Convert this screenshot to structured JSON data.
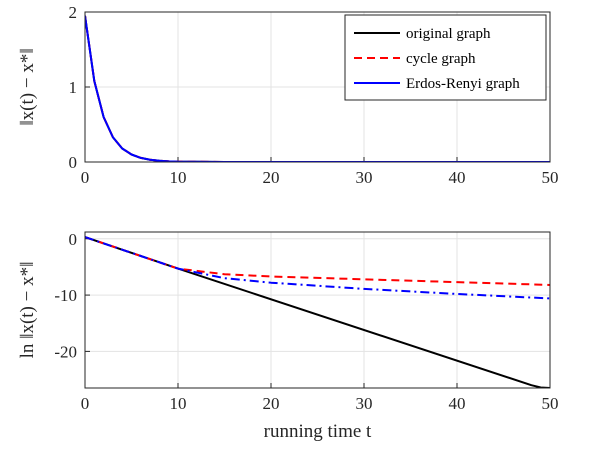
{
  "chart_data": [
    {
      "type": "line",
      "ylabel": "‖x(t) − x*‖",
      "xlim": [
        0,
        50
      ],
      "ylim": [
        0,
        2
      ],
      "x_ticks": [
        "0",
        "10",
        "20",
        "30",
        "40",
        "50"
      ],
      "y_ticks": [
        "0",
        "1",
        "2"
      ],
      "grid": true,
      "legend_position": "top-right",
      "x": [
        0,
        1,
        2,
        3,
        4,
        5,
        6,
        7,
        8,
        9,
        10,
        15,
        20,
        25,
        30,
        35,
        40,
        45,
        50
      ],
      "series": [
        {
          "name": "original graph",
          "color": "#000000",
          "dash": "solid",
          "values": [
            1.95,
            1.08,
            0.6,
            0.33,
            0.18,
            0.1,
            0.055,
            0.03,
            0.017,
            0.009,
            0.005,
            0.0,
            0.0,
            0.0,
            0.0,
            0.0,
            0.0,
            0.0,
            0.0
          ]
        },
        {
          "name": "cycle graph",
          "color": "#ff0000",
          "dash": "dashed",
          "values": [
            1.95,
            1.08,
            0.6,
            0.33,
            0.18,
            0.1,
            0.055,
            0.03,
            0.017,
            0.009,
            0.005,
            0.0,
            0.0,
            0.0,
            0.0,
            0.0,
            0.0,
            0.0,
            0.0
          ]
        },
        {
          "name": "Erdos-Renyi graph",
          "color": "#0000ff",
          "dash": "solid",
          "values": [
            1.95,
            1.08,
            0.6,
            0.33,
            0.18,
            0.1,
            0.055,
            0.03,
            0.017,
            0.009,
            0.005,
            0.0,
            0.0,
            0.0,
            0.0,
            0.0,
            0.0,
            0.0,
            0.0
          ]
        }
      ]
    },
    {
      "type": "line",
      "xlabel": "running time t",
      "ylabel": "ln ‖x(t) − x*‖",
      "xlim": [
        0,
        50
      ],
      "ylim": [
        -26.5,
        1.2
      ],
      "x_ticks": [
        "0",
        "10",
        "20",
        "30",
        "40",
        "50"
      ],
      "y_ticks": [
        "0",
        "-10",
        "-20"
      ],
      "grid": true,
      "series": [
        {
          "name": "original graph",
          "color": "#000000",
          "dash": "solid",
          "x": [
            0,
            10,
            48,
            49,
            50
          ],
          "values": [
            0.3,
            -5.3,
            -26.0,
            -26.4,
            -26.5
          ]
        },
        {
          "name": "cycle graph",
          "color": "#ff0000",
          "dash": "dashed",
          "x": [
            0,
            10,
            15,
            20,
            30,
            40,
            50
          ],
          "values": [
            0.3,
            -5.3,
            -6.3,
            -6.7,
            -7.2,
            -7.7,
            -8.2
          ]
        },
        {
          "name": "Erdos-Renyi graph",
          "color": "#0000ff",
          "dash": "dashdot",
          "x": [
            0,
            10,
            15,
            20,
            30,
            40,
            50
          ],
          "values": [
            0.3,
            -5.3,
            -7.0,
            -7.8,
            -8.9,
            -9.8,
            -10.6
          ]
        }
      ]
    }
  ]
}
